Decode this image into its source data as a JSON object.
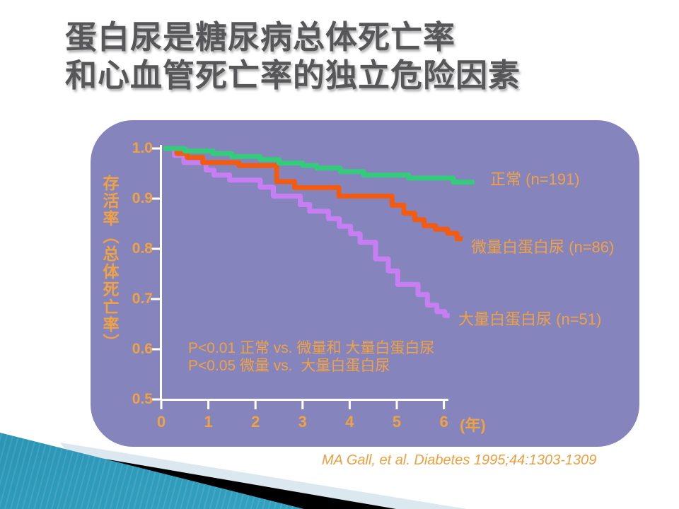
{
  "slide": {
    "title_line1": "蛋白尿是糖尿病总体死亡率",
    "title_line2": "和心血管死亡率的独立危险因素",
    "citation": "MA Gall, et al. Diabetes 1995;44:1303-1309"
  },
  "chart_data": {
    "type": "line",
    "subtype": "kaplan-meier-step",
    "title": "",
    "xlabel": "(年)",
    "ylabel": "存活率（总体死亡率）",
    "xlim": [
      0,
      6.7
    ],
    "ylim": [
      0.5,
      1.0
    ],
    "x_ticks": [
      "0",
      "1",
      "2",
      "3",
      "4",
      "5",
      "6"
    ],
    "y_ticks": [
      "1.0",
      "0.9",
      "0.8",
      "0.7",
      "0.6",
      "0.5"
    ],
    "grid": false,
    "legend_position": "right-of-curve-ends",
    "annotations": [
      "P<0.01 正常 vs. 微量和 大量白蛋白尿",
      "P<0.05 微量 vs.  大量白蛋白尿"
    ],
    "series": [
      {
        "name": "正常 (n=191)",
        "color": "#35cb7c",
        "points": [
          [
            0.05,
            1.0
          ],
          [
            0.5,
            0.995
          ],
          [
            1.1,
            0.99
          ],
          [
            1.5,
            0.984
          ],
          [
            2.1,
            0.978
          ],
          [
            2.5,
            0.971
          ],
          [
            3.0,
            0.966
          ],
          [
            3.3,
            0.961
          ],
          [
            3.8,
            0.954
          ],
          [
            4.3,
            0.947
          ],
          [
            5.25,
            0.941
          ],
          [
            6.2,
            0.933
          ],
          [
            6.65,
            0.933
          ]
        ]
      },
      {
        "name": "微量白蛋白尿 (n=86)",
        "color": "#f25c12",
        "points": [
          [
            0.05,
            1.0
          ],
          [
            0.33,
            0.99
          ],
          [
            0.55,
            0.982
          ],
          [
            0.88,
            0.972
          ],
          [
            1.65,
            0.966
          ],
          [
            2.45,
            0.934
          ],
          [
            2.83,
            0.922
          ],
          [
            3.77,
            0.905
          ],
          [
            4.9,
            0.887
          ],
          [
            5.15,
            0.871
          ],
          [
            5.38,
            0.858
          ],
          [
            5.58,
            0.846
          ],
          [
            5.82,
            0.839
          ],
          [
            6.08,
            0.831
          ],
          [
            6.28,
            0.82
          ],
          [
            6.4,
            0.82
          ]
        ]
      },
      {
        "name": "大量白蛋白尿 (n=51)",
        "color": "#c77ef2",
        "points": [
          [
            0.05,
            1.0
          ],
          [
            0.28,
            0.986
          ],
          [
            0.48,
            0.972
          ],
          [
            0.95,
            0.957
          ],
          [
            1.12,
            0.947
          ],
          [
            1.45,
            0.937
          ],
          [
            2.1,
            0.923
          ],
          [
            2.38,
            0.905
          ],
          [
            2.95,
            0.888
          ],
          [
            3.15,
            0.875
          ],
          [
            3.55,
            0.86
          ],
          [
            3.78,
            0.845
          ],
          [
            4.02,
            0.83
          ],
          [
            4.22,
            0.813
          ],
          [
            4.55,
            0.78
          ],
          [
            4.82,
            0.756
          ],
          [
            5.02,
            0.729
          ],
          [
            5.45,
            0.709
          ],
          [
            5.65,
            0.688
          ],
          [
            5.85,
            0.675
          ],
          [
            6.02,
            0.667
          ],
          [
            6.12,
            0.667
          ]
        ]
      }
    ]
  },
  "colors": {
    "panel": "#8684bd",
    "axis": "#ffffff",
    "accent_text": "#f0a242",
    "title_text": "#57575a",
    "citation_text": "#ef9f3e",
    "deco_pale": "#dbe8ef",
    "deco_black": "#000000",
    "deco_teal_dark": "#0b4f68",
    "deco_teal_light": "#38abc9"
  }
}
